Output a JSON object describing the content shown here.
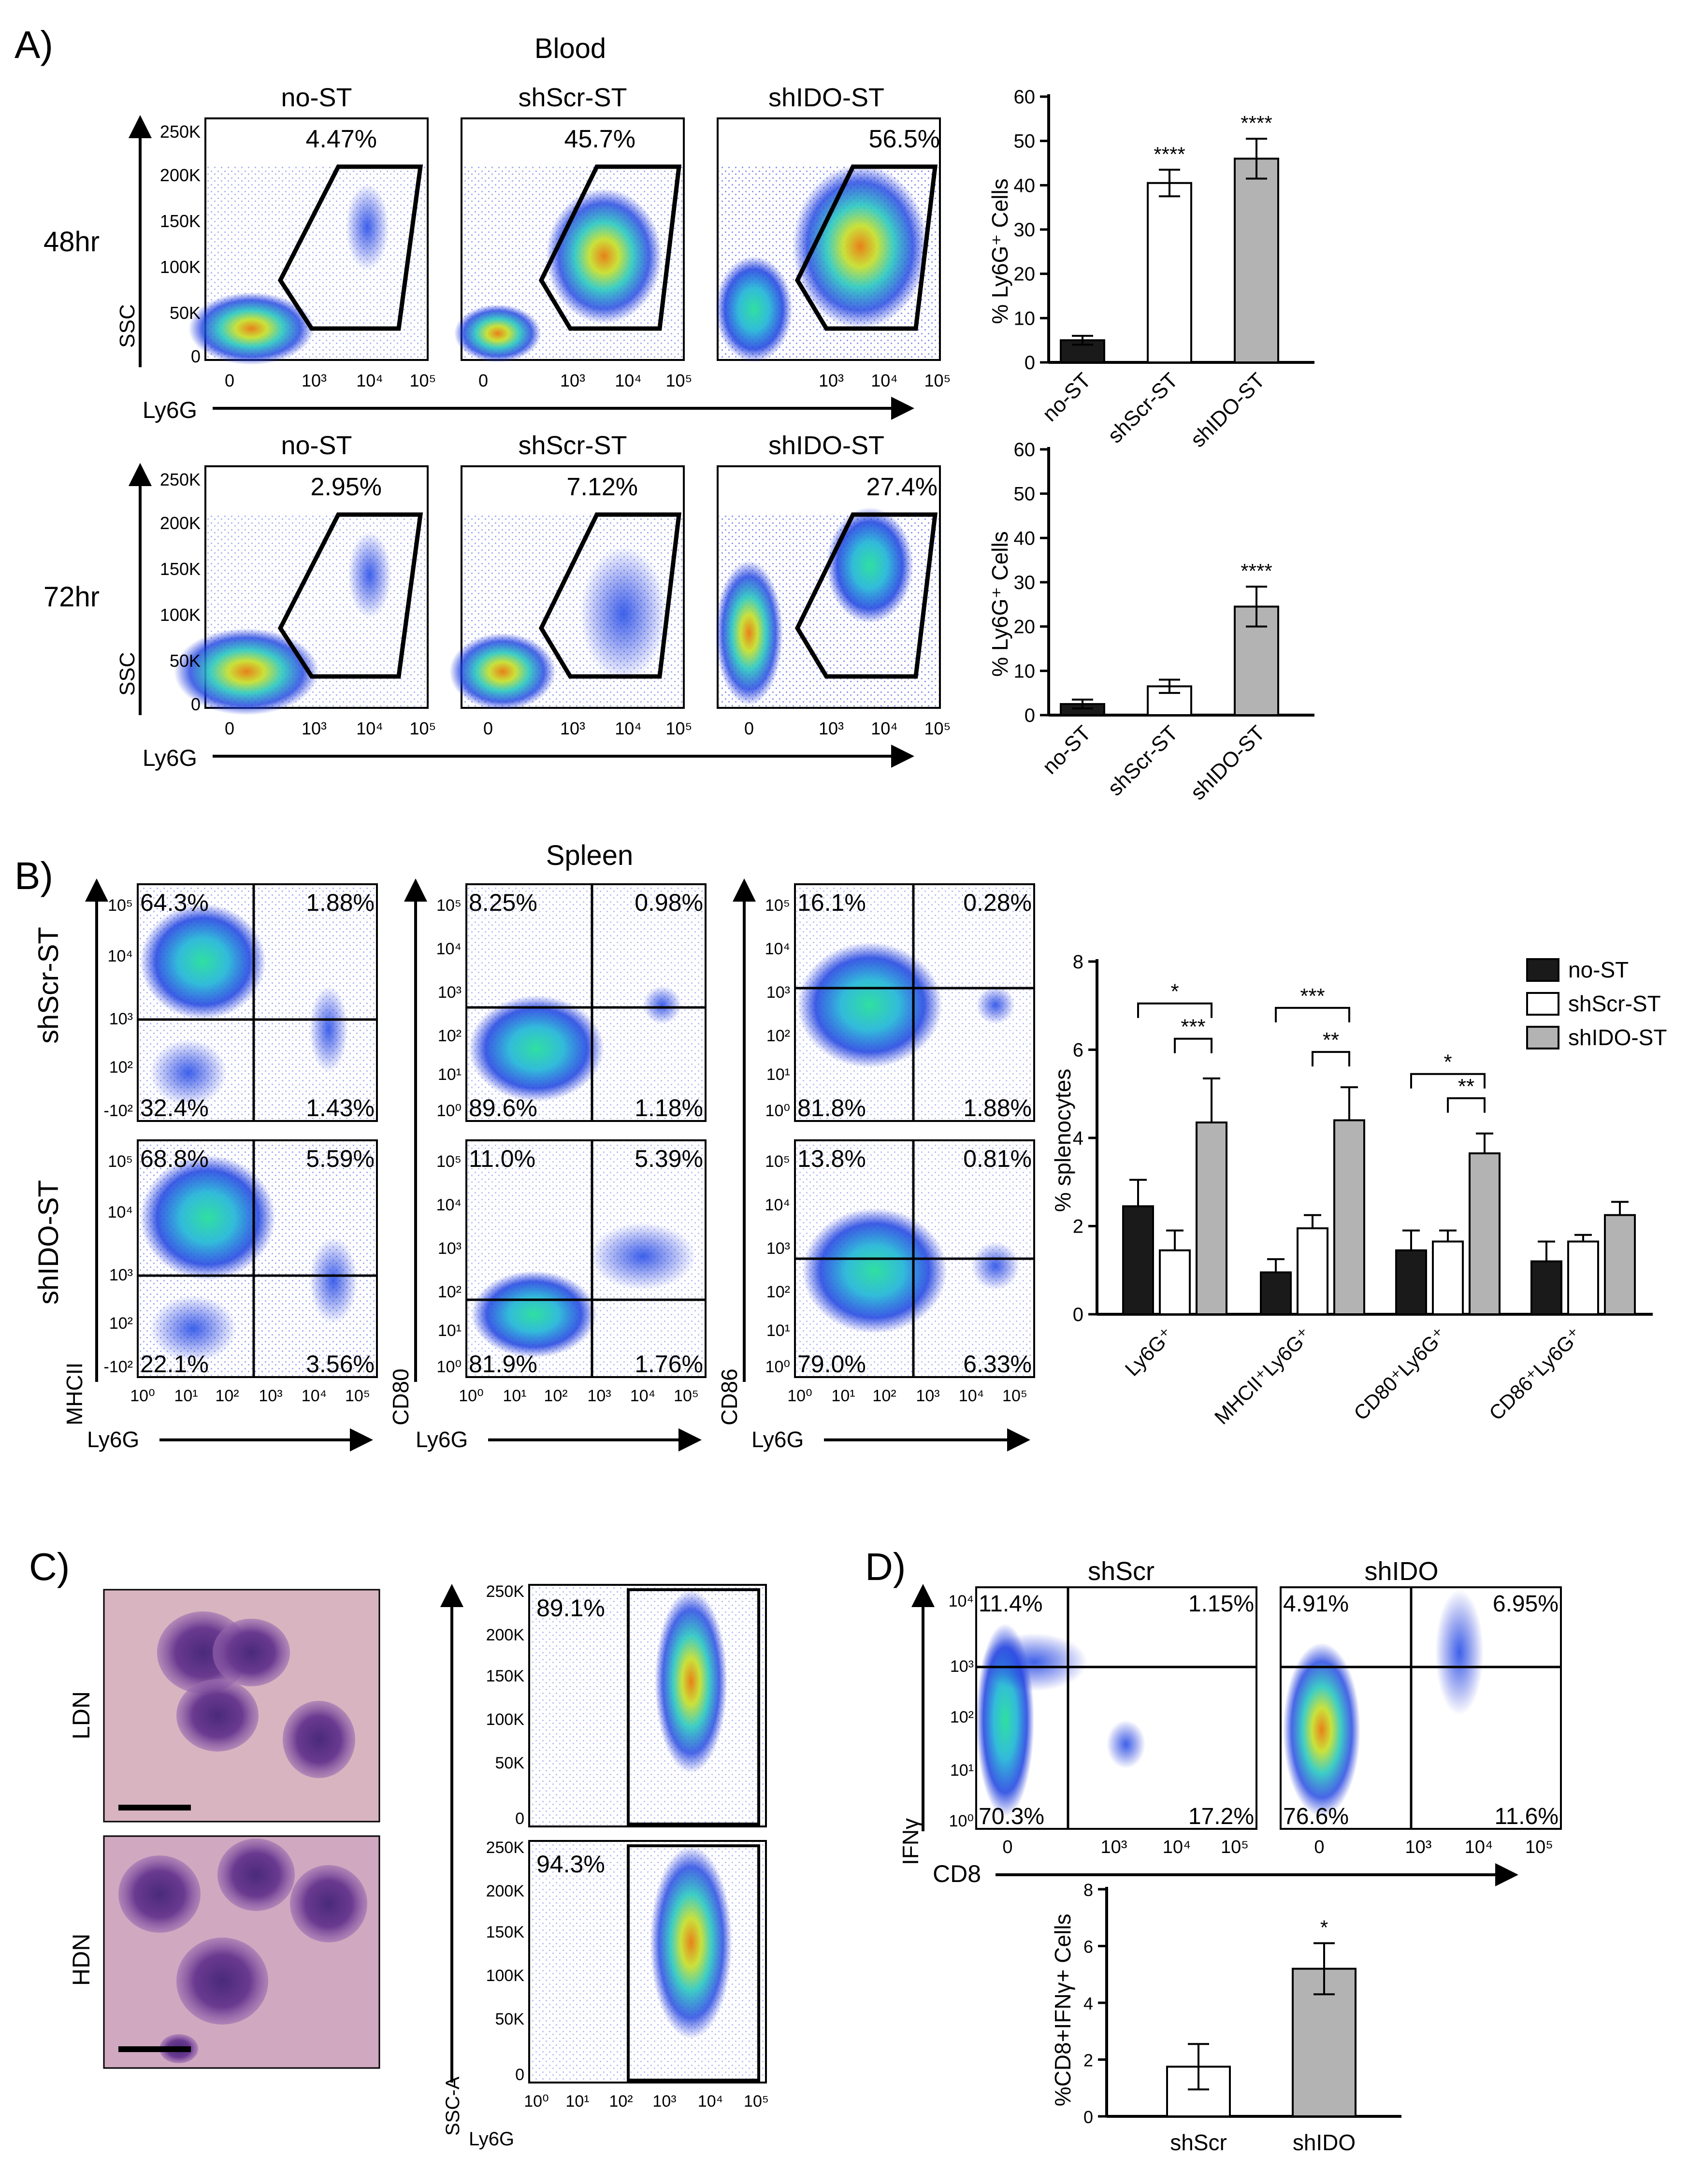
{
  "panels": {
    "A": {
      "letter": "A)",
      "title": "Blood",
      "conditions": [
        "no-ST",
        "shScr-ST",
        "shIDO-ST"
      ],
      "rows": [
        {
          "label": "48hr",
          "percents": [
            "4.47%",
            "45.7%",
            "56.5%"
          ]
        },
        {
          "label": "72hr",
          "percents": [
            "2.95%",
            "7.12%",
            "27.4%"
          ]
        }
      ],
      "ylabel": "SSC",
      "xlabel": "Ly6G",
      "ssc_ticks": [
        "250K",
        "200K",
        "150K",
        "100K",
        "50K",
        "0"
      ],
      "log_ticks": [
        "0",
        "10³",
        "10⁴",
        "10⁵"
      ]
    },
    "B": {
      "letter": "B)",
      "title": "Spleen",
      "row_labels": [
        "shScr-ST",
        "shIDO-ST"
      ],
      "markers": [
        "MHCII",
        "CD80",
        "CD86"
      ],
      "xlabel": "Ly6G",
      "quadrants": [
        [
          {
            "UL": "64.3%",
            "UR": "1.88%",
            "LL": "32.4%",
            "LR": "1.43%"
          },
          {
            "UL": "8.25%",
            "UR": "0.98%",
            "LL": "89.6%",
            "LR": "1.18%"
          },
          {
            "UL": "16.1%",
            "UR": "0.28%",
            "LL": "81.8%",
            "LR": "1.88%"
          }
        ],
        [
          {
            "UL": "68.8%",
            "UR": "5.59%",
            "LL": "22.1%",
            "LR": "3.56%"
          },
          {
            "UL": "11.0%",
            "UR": "5.39%",
            "LL": "81.9%",
            "LR": "1.76%"
          },
          {
            "UL": "13.8%",
            "UR": "0.81%",
            "LL": "79.0%",
            "LR": "6.33%"
          }
        ]
      ],
      "log_ticks": [
        "10⁰",
        "10¹",
        "10²",
        "10³",
        "10⁴",
        "10⁵"
      ],
      "mhc_ticks": [
        "10⁵",
        "10⁴",
        "10³",
        "10²",
        "-10²"
      ]
    },
    "C": {
      "letter": "C)",
      "image_labels": [
        "LDN",
        "HDN"
      ],
      "percents": [
        "89.1%",
        "94.3%"
      ],
      "ylabel": "SSC-A",
      "xlabel": "Ly6G",
      "ssc_ticks": [
        "250K",
        "200K",
        "150K",
        "100K",
        "50K",
        "0"
      ],
      "log_ticks": [
        "10⁰",
        "10¹",
        "10²",
        "10³",
        "10⁴",
        "10⁵"
      ]
    },
    "D": {
      "letter": "D)",
      "conditions": [
        "shScr",
        "shIDO"
      ],
      "quadrants": [
        {
          "UL": "11.4%",
          "UR": "1.15%",
          "LL": "70.3%",
          "LR": "17.2%"
        },
        {
          "UL": "4.91%",
          "UR": "6.95%",
          "LL": "76.6%",
          "LR": "11.6%"
        }
      ],
      "ylabel": "IFNγ",
      "xlabel": "CD8",
      "y_ticks": [
        "10⁴",
        "10³",
        "10²",
        "10¹",
        "10⁰"
      ],
      "x_ticks": [
        "0",
        "10³",
        "10⁴",
        "10⁵"
      ]
    }
  },
  "colors": {
    "black_bar": "#1a1a1a",
    "white_bar": "#ffffff",
    "grey_bar": "#b3b3b3",
    "density_low": "#1a2fd8",
    "density_mid": "#28c8c0",
    "density_high": "#e8a020"
  },
  "chart_data": [
    {
      "id": "A-48hr",
      "type": "bar",
      "categories": [
        "no-ST",
        "shScr-ST",
        "shIDO-ST"
      ],
      "values": [
        5,
        40.5,
        46
      ],
      "errors": [
        1,
        3,
        4.5
      ],
      "significance": [
        "",
        "****",
        "****"
      ],
      "fills": [
        "black",
        "white",
        "grey"
      ],
      "ylabel": "% Ly6G⁺ Cells",
      "ylim": [
        0,
        60
      ],
      "yticks": [
        0,
        10,
        20,
        30,
        40,
        50,
        60
      ]
    },
    {
      "id": "A-72hr",
      "type": "bar",
      "categories": [
        "no-ST",
        "shScr-ST",
        "shIDO-ST"
      ],
      "values": [
        2.5,
        6.5,
        24.5
      ],
      "errors": [
        1,
        1.5,
        4.5
      ],
      "significance": [
        "",
        "",
        "****"
      ],
      "fills": [
        "black",
        "white",
        "grey"
      ],
      "ylabel": "% Ly6G⁺ Cells",
      "ylim": [
        0,
        60
      ],
      "yticks": [
        0,
        10,
        20,
        30,
        40,
        50,
        60
      ]
    },
    {
      "id": "B",
      "type": "bar",
      "categories": [
        "Ly6G⁺",
        "MHCII⁺Ly6G⁺",
        "CD80⁺Ly6G⁺",
        "CD86⁺Ly6G⁺"
      ],
      "series": [
        {
          "name": "no-ST",
          "fill": "black",
          "values": [
            2.45,
            0.95,
            1.45,
            1.2
          ],
          "errors": [
            0.6,
            0.3,
            0.45,
            0.45
          ]
        },
        {
          "name": "shScr-ST",
          "fill": "white",
          "values": [
            1.45,
            1.95,
            1.65,
            1.65
          ],
          "errors": [
            0.45,
            0.3,
            0.25,
            0.15
          ]
        },
        {
          "name": "shIDO-ST",
          "fill": "grey",
          "values": [
            4.35,
            4.4,
            3.65,
            2.25
          ],
          "errors": [
            1.0,
            0.75,
            0.45,
            0.3
          ]
        }
      ],
      "brackets": [
        {
          "group": 0,
          "from": 0,
          "to": 2,
          "label": "*",
          "level": 7.05
        },
        {
          "group": 0,
          "from": 1,
          "to": 2,
          "label": "***",
          "level": 6.25
        },
        {
          "group": 1,
          "from": 0,
          "to": 2,
          "label": "***",
          "level": 6.95
        },
        {
          "group": 1,
          "from": 1,
          "to": 2,
          "label": "**",
          "level": 5.95
        },
        {
          "group": 2,
          "from": 0,
          "to": 2,
          "label": "*",
          "level": 5.45
        },
        {
          "group": 2,
          "from": 1,
          "to": 2,
          "label": "**",
          "level": 4.9
        }
      ],
      "ylabel": "% splenocytes",
      "ylim": [
        0,
        8
      ],
      "yticks": [
        0,
        2,
        4,
        6,
        8
      ],
      "legend": [
        "no-ST",
        "shScr-ST",
        "shIDO-ST"
      ],
      "legend_position": "top-right"
    },
    {
      "id": "D",
      "type": "bar",
      "categories": [
        "shScr",
        "shIDO"
      ],
      "values": [
        1.75,
        5.2
      ],
      "errors": [
        0.8,
        0.9
      ],
      "significance": [
        "",
        "*"
      ],
      "fills": [
        "white",
        "grey"
      ],
      "ylabel": "%CD8+IFNγ+ Cells",
      "ylim": [
        0,
        8
      ],
      "yticks": [
        0,
        2,
        4,
        6,
        8
      ]
    }
  ]
}
